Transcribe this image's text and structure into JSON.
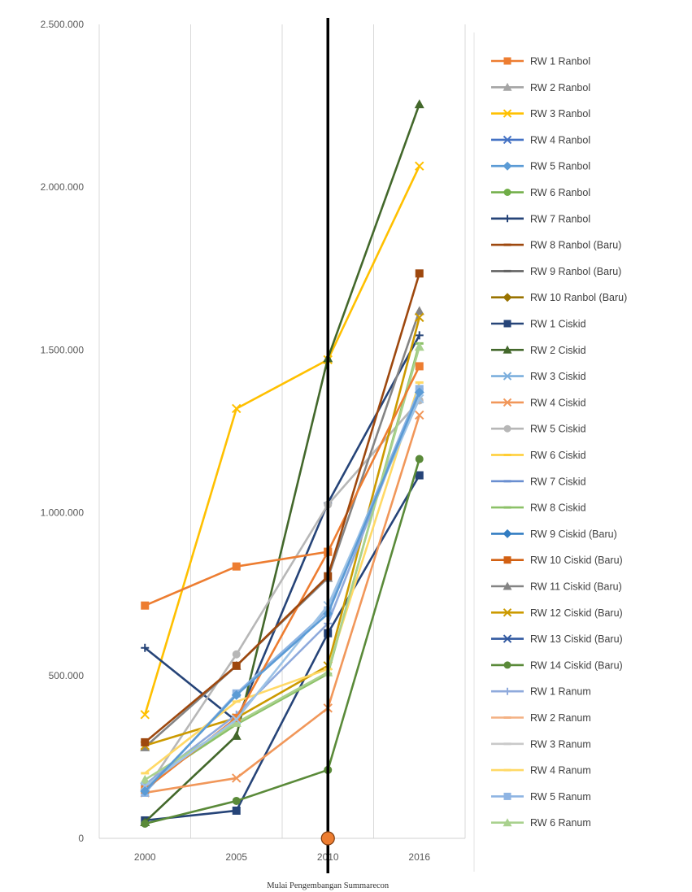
{
  "chart_data": {
    "type": "line",
    "categories": [
      "2000",
      "2005",
      "2010",
      "2016"
    ],
    "ylim": [
      0,
      2500000
    ],
    "yticks": [
      0,
      500000,
      1000000,
      1500000,
      2000000,
      2500000
    ],
    "ytick_labels": [
      "0",
      "500.000",
      "1.000.000",
      "1.500.000",
      "2.000.000",
      "2.500.000"
    ],
    "grid": "vertical",
    "legend_position": "right",
    "annotation": {
      "category": "2010",
      "label": "Mulai Pengembangan Summarecon",
      "marker_value": 0
    },
    "series": [
      {
        "name": "RW 1 Ranbol",
        "color": "#ed7d31",
        "marker": "square",
        "values": [
          null,
          null,
          null,
          null
        ]
      },
      {
        "name": "RW 2 Ranbol",
        "color": "#a5a5a5",
        "marker": "triangle",
        "values": [
          null,
          null,
          null,
          null
        ]
      },
      {
        "name": "RW 3 Ranbol",
        "color": "#ffc000",
        "marker": "x",
        "values": [
          380000,
          1320000,
          1470000,
          2065000
        ]
      },
      {
        "name": "RW 4 Ranbol",
        "color": "#4472c4",
        "marker": "x",
        "values": [
          null,
          null,
          null,
          null
        ]
      },
      {
        "name": "RW 5 Ranbol",
        "color": "#5b9bd5",
        "marker": "diamond",
        "values": [
          null,
          null,
          null,
          null
        ]
      },
      {
        "name": "RW 6 Ranbol",
        "color": "#70ad47",
        "marker": "circle",
        "values": [
          null,
          null,
          null,
          null
        ]
      },
      {
        "name": "RW 7 Ranbol",
        "color": "#264478",
        "marker": "plus",
        "values": [
          585000,
          360000,
          1030000,
          1545000
        ]
      },
      {
        "name": "RW 8 Ranbol (Baru)",
        "color": "#9e480e",
        "marker": "dash",
        "values": [
          null,
          null,
          null,
          null
        ]
      },
      {
        "name": "RW 9 Ranbol (Baru)",
        "color": "#636363",
        "marker": "dash",
        "values": [
          null,
          null,
          null,
          null
        ]
      },
      {
        "name": "RW 10 Ranbol (Baru)",
        "color": "#997300",
        "marker": "diamond",
        "values": [
          null,
          null,
          null,
          null
        ]
      },
      {
        "name": "RW 1 Ciskid",
        "color": "#264478",
        "marker": "square",
        "values": [
          55000,
          85000,
          630000,
          1115000
        ]
      },
      {
        "name": "RW 2 Ciskid",
        "color": "#43682b",
        "marker": "triangle",
        "values": [
          50000,
          315000,
          1475000,
          2255000
        ]
      },
      {
        "name": "RW 3 Ciskid",
        "color": "#7cafdd",
        "marker": "x",
        "values": [
          null,
          null,
          null,
          null
        ]
      },
      {
        "name": "RW 4 Ciskid",
        "color": "#f1975a",
        "marker": "x",
        "values": [
          140000,
          185000,
          400000,
          1300000
        ]
      },
      {
        "name": "RW 5 Ciskid",
        "color": "#b7b7b7",
        "marker": "circle",
        "values": [
          145000,
          565000,
          1025000,
          1345000
        ]
      },
      {
        "name": "RW 6 Ciskid",
        "color": "#ffcd33",
        "marker": "dash",
        "values": [
          null,
          null,
          null,
          null
        ]
      },
      {
        "name": "RW 7 Ciskid",
        "color": "#698ed0",
        "marker": "dash",
        "values": [
          null,
          null,
          null,
          null
        ]
      },
      {
        "name": "RW 8 Ciskid",
        "color": "#8cc168",
        "marker": "dash",
        "values": [
          165000,
          350000,
          505000,
          1520000
        ]
      },
      {
        "name": "RW 9 Ciskid (Baru)",
        "color": "#327dc2",
        "marker": "diamond",
        "values": [
          null,
          null,
          null,
          null
        ]
      },
      {
        "name": "RW 10 Ciskid (Baru)",
        "color": "#d26012",
        "marker": "square",
        "values": [
          null,
          null,
          null,
          null
        ]
      },
      {
        "name": "RW 11 Ciskid (Baru)",
        "color": "#848484",
        "marker": "triangle",
        "values": [
          280000,
          530000,
          800000,
          1620000
        ]
      },
      {
        "name": "RW 12 Ciskid (Baru)",
        "color": "#cc9a00",
        "marker": "x",
        "values": [
          285000,
          370000,
          530000,
          1600000
        ]
      },
      {
        "name": "RW 13 Ciskid (Baru)",
        "color": "#335aa1",
        "marker": "x",
        "values": [
          null,
          null,
          null,
          null
        ]
      },
      {
        "name": "RW 14 Ciskid (Baru)",
        "color": "#5a8a39",
        "marker": "circle",
        "values": [
          45000,
          115000,
          210000,
          1165000
        ]
      },
      {
        "name": "RW 1 Ranum",
        "color": "#8faadc",
        "marker": "plus",
        "values": [
          165000,
          380000,
          660000,
          1380000
        ]
      },
      {
        "name": "RW 2 Ranum",
        "color": "#f4b183",
        "marker": "dash",
        "values": [
          null,
          null,
          null,
          null
        ]
      },
      {
        "name": "RW 3 Ranum",
        "color": "#c9c9c9",
        "marker": "dash",
        "values": [
          null,
          null,
          null,
          null
        ]
      },
      {
        "name": "RW 4 Ranum",
        "color": "#ffd966",
        "marker": "dash",
        "values": [
          200000,
          420000,
          520000,
          1400000
        ]
      },
      {
        "name": "RW 5 Ranum",
        "color": "#8eb4e3",
        "marker": "square",
        "values": [
          140000,
          445000,
          700000,
          1380000
        ]
      },
      {
        "name": "RW 6 Ranum",
        "color": "#a9d18e",
        "marker": "triangle",
        "values": [
          180000,
          355000,
          510000,
          1510000
        ]
      },
      {
        "name": "",
        "color": "#ed7d31",
        "marker": "square",
        "values": [
          150000,
          370000,
          880000,
          1450000
        ]
      },
      {
        "name": "",
        "color": "#9e480e",
        "marker": "square",
        "values": [
          295000,
          530000,
          805000,
          1735000
        ]
      },
      {
        "name": "",
        "color": "#ed7d31",
        "marker": "square",
        "values": [
          715000,
          835000,
          880000,
          null
        ]
      },
      {
        "name": "",
        "color": "#9dc3e6",
        "marker": "x",
        "values": [
          160000,
          365000,
          715000,
          1350000
        ]
      },
      {
        "name": "",
        "color": "#5b9bd5",
        "marker": "diamond",
        "values": [
          145000,
          440000,
          690000,
          1370000
        ]
      }
    ]
  }
}
